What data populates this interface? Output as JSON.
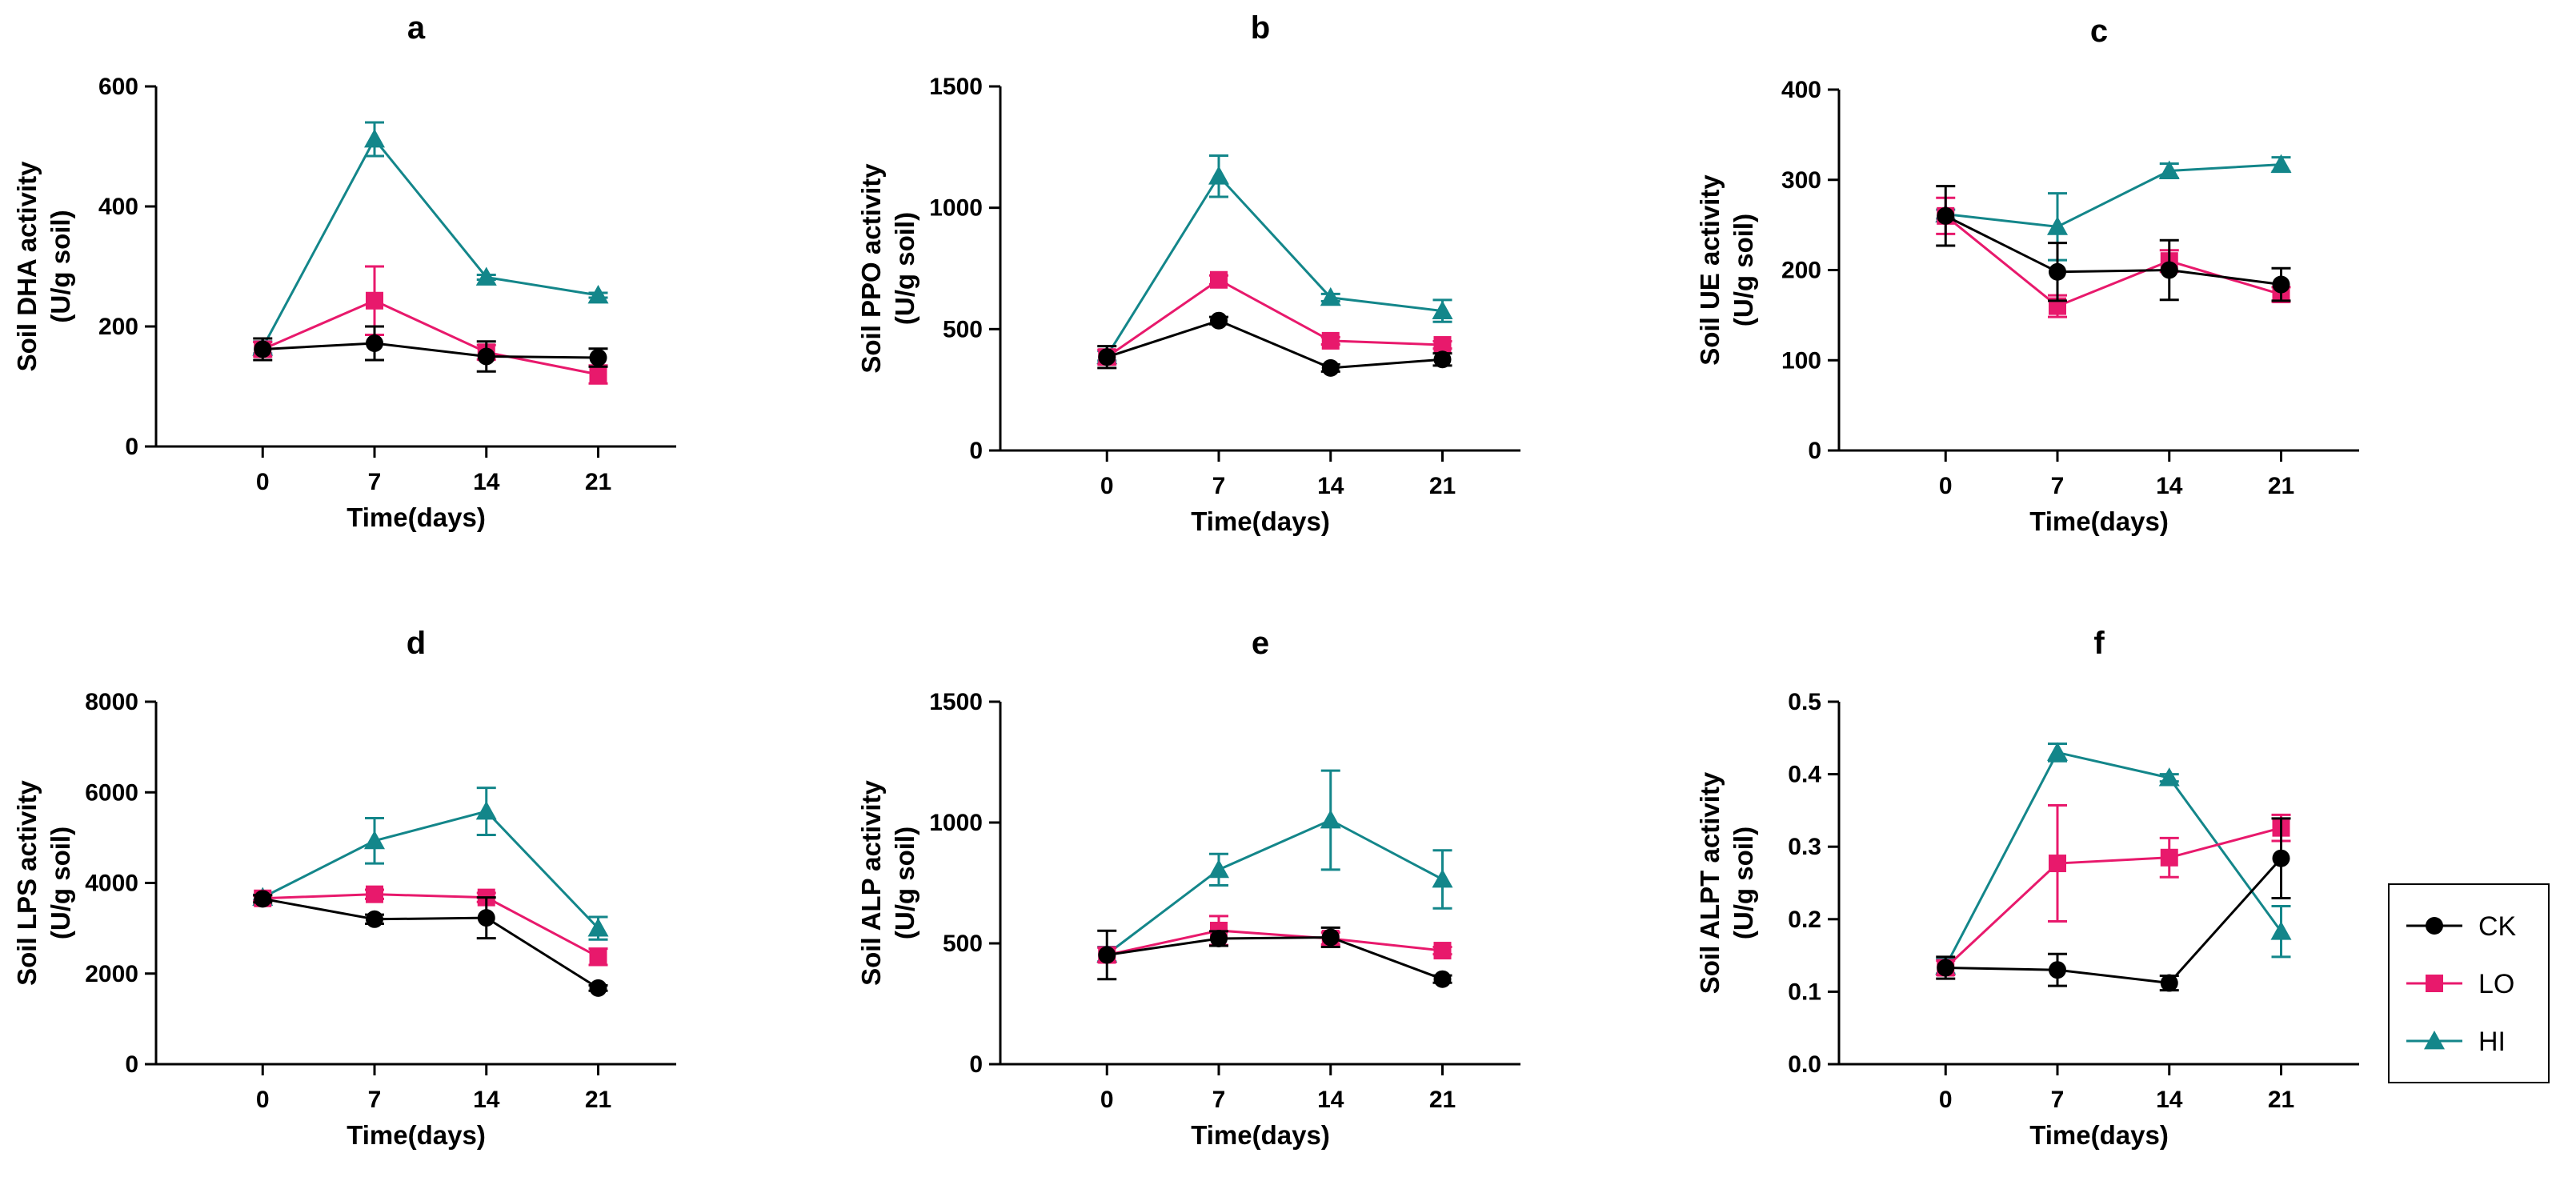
{
  "chart_data": [
    {
      "panel": "a",
      "type": "line",
      "ylabel_line1": "Soil DHA activity",
      "ylabel_line2": "(U/g soil)",
      "xlabel": "Time(days)",
      "x": [
        0,
        7,
        14,
        21
      ],
      "xticks": [
        "0",
        "7",
        "14",
        "21"
      ],
      "ylim": [
        0,
        600
      ],
      "yticks": [
        "0",
        "200",
        "400",
        "600"
      ],
      "series": [
        {
          "name": "CK",
          "values": [
            162,
            172,
            150,
            148
          ],
          "errors": [
            18,
            28,
            25,
            15
          ]
        },
        {
          "name": "LO",
          "values": [
            162,
            243,
            157,
            120
          ],
          "errors": [
            12,
            57,
            12,
            15
          ]
        },
        {
          "name": "HI",
          "values": [
            165,
            512,
            282,
            252
          ],
          "errors": [
            10,
            28,
            4,
            4
          ]
        }
      ]
    },
    {
      "panel": "b",
      "type": "line",
      "ylabel_line1": "Soil PPO activity",
      "ylabel_line2": "(U/g soil)",
      "xlabel": "Time(days)",
      "x": [
        0,
        7,
        14,
        21
      ],
      "xticks": [
        "0",
        "7",
        "14",
        "21"
      ],
      "ylim": [
        0,
        1500
      ],
      "yticks": [
        "0",
        "500",
        "1000",
        "1500"
      ],
      "series": [
        {
          "name": "CK",
          "values": [
            385,
            535,
            340,
            375
          ],
          "errors": [
            45,
            15,
            15,
            25
          ]
        },
        {
          "name": "LO",
          "values": [
            385,
            703,
            452,
            435
          ],
          "errors": [
            30,
            18,
            15,
            15
          ]
        },
        {
          "name": "HI",
          "values": [
            390,
            1130,
            630,
            575
          ],
          "errors": [
            20,
            85,
            15,
            45
          ]
        }
      ]
    },
    {
      "panel": "c",
      "type": "line",
      "ylabel_line1": "Soil UE activity",
      "ylabel_line2": "(U/g soil)",
      "xlabel": "Time(days)",
      "x": [
        0,
        7,
        14,
        21
      ],
      "xticks": [
        "0",
        "7",
        "14",
        "21"
      ],
      "ylim": [
        0,
        400
      ],
      "yticks": [
        "0",
        "100",
        "200",
        "300",
        "400"
      ],
      "series": [
        {
          "name": "CK",
          "values": [
            260,
            198,
            200,
            184
          ],
          "errors": [
            33,
            32,
            33,
            18
          ]
        },
        {
          "name": "LO",
          "values": [
            260,
            160,
            210,
            173
          ],
          "errors": [
            20,
            12,
            12,
            8
          ]
        },
        {
          "name": "HI",
          "values": [
            262,
            248,
            310,
            317
          ],
          "errors": [
            5,
            37,
            8,
            8
          ]
        }
      ]
    },
    {
      "panel": "d",
      "type": "line",
      "ylabel_line1": "Soil LPS activity",
      "ylabel_line2": "(U/g soil)",
      "xlabel": "Time(days)",
      "x": [
        0,
        7,
        14,
        21
      ],
      "xticks": [
        "0",
        "7",
        "14",
        "21"
      ],
      "ylim": [
        0,
        8000
      ],
      "yticks": [
        "0",
        "2000",
        "4000",
        "6000",
        "8000"
      ],
      "series": [
        {
          "name": "CK",
          "values": [
            3650,
            3200,
            3230,
            1680
          ],
          "errors": [
            80,
            100,
            450,
            60
          ]
        },
        {
          "name": "LO",
          "values": [
            3660,
            3750,
            3680,
            2370
          ],
          "errors": [
            60,
            100,
            100,
            180
          ]
        },
        {
          "name": "HI",
          "values": [
            3680,
            4930,
            5580,
            3000
          ],
          "errors": [
            60,
            500,
            520,
            250
          ]
        }
      ]
    },
    {
      "panel": "e",
      "type": "line",
      "ylabel_line1": "Soil ALP activity",
      "ylabel_line2": "(U/g soil)",
      "xlabel": "Time(days)",
      "x": [
        0,
        7,
        14,
        21
      ],
      "xticks": [
        "0",
        "7",
        "14",
        "21"
      ],
      "ylim": [
        0,
        1500
      ],
      "yticks": [
        "0",
        "500",
        "1000",
        "1500"
      ],
      "series": [
        {
          "name": "CK",
          "values": [
            452,
            520,
            525,
            352
          ],
          "errors": [
            100,
            30,
            40,
            15
          ]
        },
        {
          "name": "LO",
          "values": [
            452,
            553,
            520,
            470
          ],
          "errors": [
            30,
            60,
            25,
            15
          ]
        },
        {
          "name": "HI",
          "values": [
            455,
            805,
            1010,
            765
          ],
          "errors": [
            30,
            65,
            205,
            120
          ]
        }
      ]
    },
    {
      "panel": "f",
      "type": "line",
      "ylabel_line1": "Soil ALPT activity",
      "ylabel_line2": "(U/g soil)",
      "xlabel": "Time(days)",
      "x": [
        0,
        7,
        14,
        21
      ],
      "xticks": [
        "0",
        "7",
        "14",
        "21"
      ],
      "ylim": [
        0,
        0.5
      ],
      "yticks": [
        "0.0",
        "0.1",
        "0.2",
        "0.3",
        "0.4",
        "0.5"
      ],
      "series": [
        {
          "name": "CK",
          "values": [
            0.133,
            0.13,
            0.112,
            0.284
          ],
          "errors": [
            0.015,
            0.022,
            0.01,
            0.055
          ]
        },
        {
          "name": "LO",
          "values": [
            0.133,
            0.277,
            0.285,
            0.326
          ],
          "errors": [
            0.01,
            0.08,
            0.027,
            0.018
          ]
        },
        {
          "name": "HI",
          "values": [
            0.135,
            0.43,
            0.395,
            0.183
          ],
          "errors": [
            0.01,
            0.012,
            0.005,
            0.035
          ]
        }
      ]
    }
  ],
  "legend": {
    "entries": [
      "CK",
      "LO",
      "HI"
    ]
  },
  "colors": {
    "CK": "#000000",
    "LO": "#e8196c",
    "HI": "#13868a"
  }
}
